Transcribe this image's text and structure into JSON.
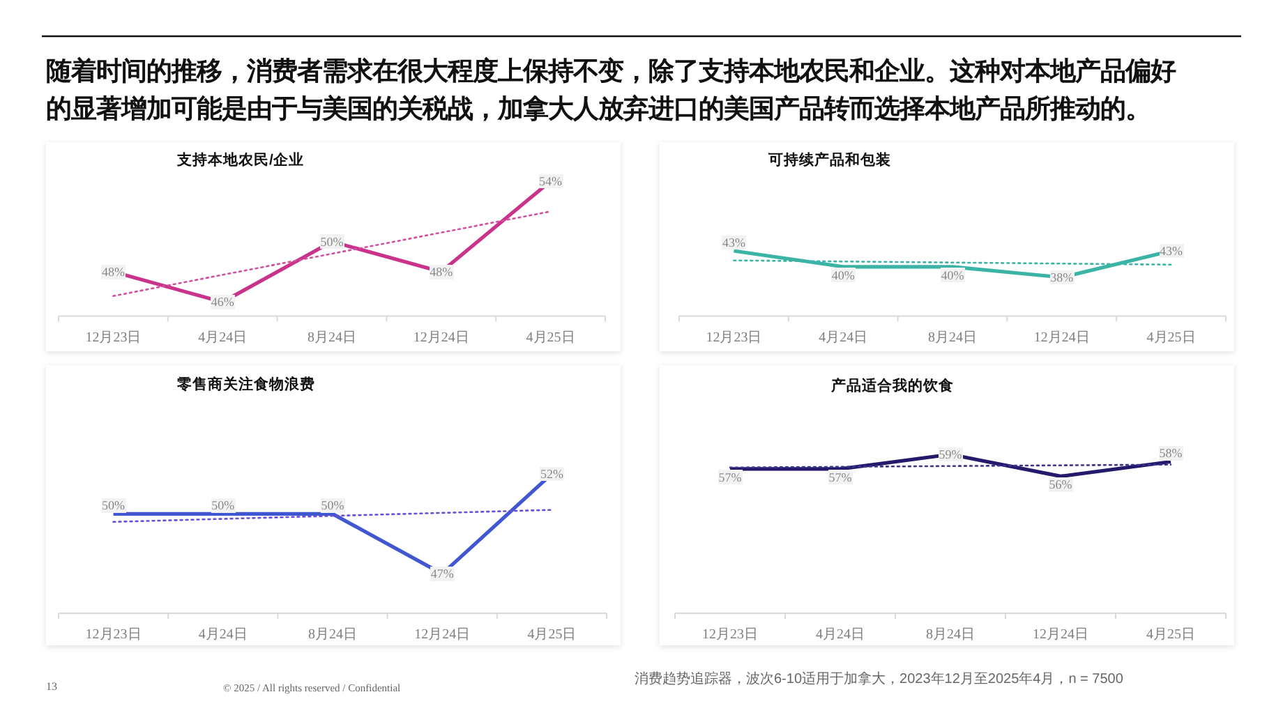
{
  "chart_data": [
    {
      "type": "other",
      "title": "随着时间的推移，消费者需求在很大程度上保持不变，除了支持本地农民和企业。这种对本地产品偏好的显著增加可能是由于与美国的关税战，加拿大人放弃进口的美国产品转而选择本地产品所推动的。",
      "annotations": [
        "消费趋势追踪器，波次6-10适用于加拿大，2023年12月至2025年4月，n = 7500",
        "13",
        "© 2025 / All rights reserved / Confidential"
      ]
    },
    {
      "type": "line",
      "title": "支持本地农民/企业",
      "categories": [
        "12月23日",
        "4月24日",
        "8月24日",
        "12月24日",
        "4月25日"
      ],
      "tick_labels": "x",
      "series": [
        {
          "color": "#c9338c",
          "values": [
            48,
            46,
            50,
            48,
            54
          ],
          "value_labels": [
            "48%",
            "46%",
            "50%",
            "48%",
            "54%"
          ]
        },
        {
          "color": "#d24fa0",
          "values": [
            46.4,
            47.8,
            49.2,
            50.6,
            52.0
          ],
          "line_style": "dotted"
        }
      ]
    },
    {
      "type": "line",
      "title": "可持续产品和包装",
      "categories": [
        "12月23日",
        "4月24日",
        "8月24日",
        "12月24日",
        "4月25日"
      ],
      "tick_labels": "x",
      "series": [
        {
          "color": "#3bb3a5",
          "values": [
            43,
            40,
            40,
            38,
            43
          ],
          "value_labels": [
            "43%",
            "40%",
            "40%",
            "38%",
            "43%"
          ]
        },
        {
          "color": "#3bb3a5",
          "values": [
            41.2,
            41.0,
            40.8,
            40.6,
            40.4
          ],
          "line_style": "dotted"
        }
      ]
    },
    {
      "type": "line",
      "title": "零售商关注食物浪费",
      "categories": [
        "12月23日",
        "4月24日",
        "8月24日",
        "12月24日",
        "4月25日"
      ],
      "tick_labels": "x",
      "series": [
        {
          "color": "#4157d2",
          "values": [
            50,
            50,
            50,
            47,
            52
          ],
          "value_labels": [
            "50%",
            "50%",
            "50%",
            "47%",
            "52%"
          ]
        },
        {
          "color": "#6a4fd0",
          "values": [
            49.6,
            49.75,
            49.9,
            50.05,
            50.2
          ],
          "line_style": "dotted"
        }
      ]
    },
    {
      "type": "line",
      "title": "产品适合我的饮食",
      "categories": [
        "12月23日",
        "4月24日",
        "8月24日",
        "12月24日",
        "4月25日"
      ],
      "tick_labels": "x",
      "series": [
        {
          "color": "#241a6b",
          "values": [
            57,
            57,
            59,
            56,
            58
          ],
          "value_labels": [
            "57%",
            "57%",
            "59%",
            "56%",
            "58%"
          ]
        },
        {
          "color": "#3b3590",
          "values": [
            57.2,
            57.3,
            57.4,
            57.5,
            57.6
          ],
          "line_style": "dotted"
        }
      ]
    }
  ]
}
